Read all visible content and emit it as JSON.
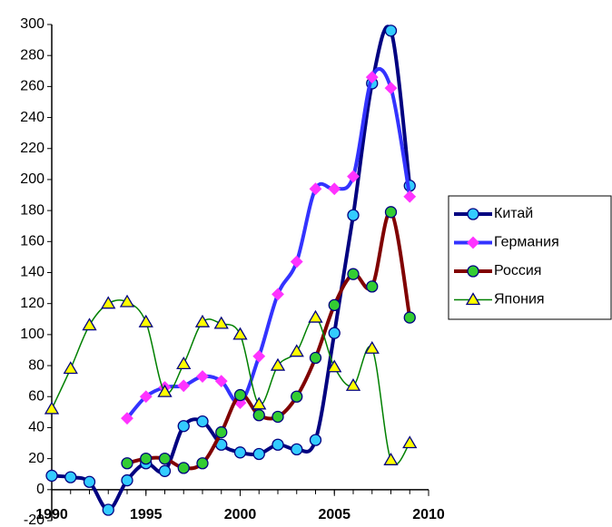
{
  "chart_data": {
    "type": "line",
    "x": [
      1990,
      1991,
      1992,
      1993,
      1994,
      1995,
      1996,
      1997,
      1998,
      1999,
      2000,
      2001,
      2002,
      2003,
      2004,
      2005,
      2006,
      2007,
      2008,
      2009
    ],
    "series": [
      {
        "name": "Китай",
        "color": "#000080",
        "marker": "circle",
        "marker_color": "#33ccff",
        "values": [
          9,
          8,
          5,
          -13,
          6,
          17,
          12,
          41,
          44,
          29,
          24,
          23,
          29,
          26,
          32,
          101,
          177,
          262,
          296,
          196
        ]
      },
      {
        "name": "Германия",
        "color": "#3333ff",
        "marker": "diamond",
        "marker_color": "#ff33ff",
        "values": [
          null,
          null,
          null,
          null,
          46,
          60,
          66,
          67,
          73,
          70,
          56,
          86,
          126,
          147,
          194,
          194,
          202,
          266,
          259,
          189
        ]
      },
      {
        "name": "Россия",
        "color": "#800000",
        "marker": "circle",
        "marker_color": "#33cc33",
        "values": [
          null,
          null,
          null,
          null,
          17,
          20,
          20,
          14,
          17,
          37,
          61,
          48,
          47,
          60,
          85,
          119,
          139,
          131,
          179,
          111
        ]
      },
      {
        "name": "Япония",
        "color": "#008000",
        "marker": "triangle",
        "marker_color": "#ffff00",
        "values": [
          52,
          78,
          106,
          120,
          121,
          108,
          63,
          81,
          108,
          107,
          100,
          55,
          80,
          89,
          111,
          79,
          67,
          91,
          19,
          30
        ]
      }
    ],
    "xlim": [
      1990,
      2010
    ],
    "xticks": [
      1990,
      1995,
      2000,
      2005,
      2010
    ],
    "ylim": [
      -20,
      300
    ],
    "yticks": [
      -20,
      0,
      20,
      40,
      60,
      80,
      100,
      120,
      140,
      160,
      180,
      200,
      220,
      240,
      260,
      280,
      300
    ],
    "smooth": true,
    "legend": "right"
  }
}
